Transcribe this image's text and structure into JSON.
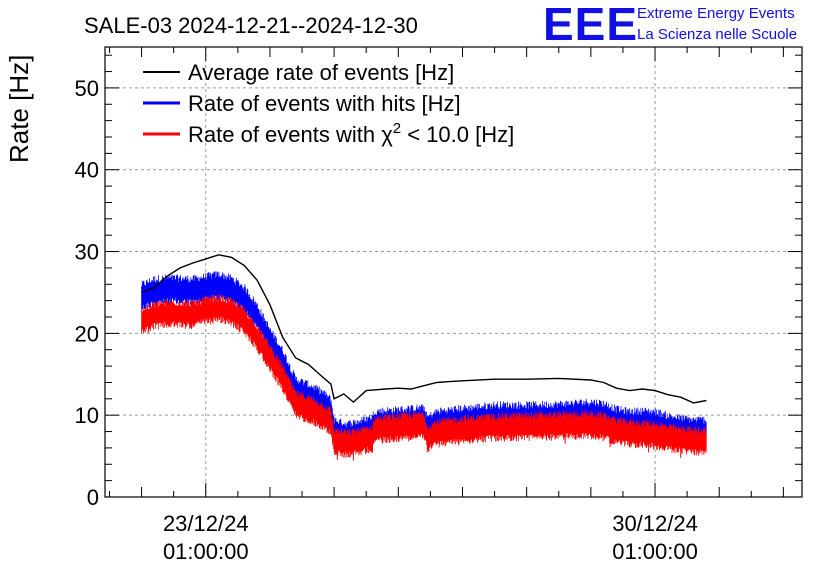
{
  "colors": {
    "average": "#000000",
    "hits": "#0000ff",
    "chi2": "#ff0000",
    "logo": "#1010e0"
  },
  "logo": {
    "mark": "EEE",
    "line1": "Extreme Energy Events",
    "line2": "La Scienza nelle Scuole"
  },
  "chart_data": {
    "type": "line",
    "title": "SALE-03 2024-12-21--2024-12-30",
    "ylabel": "Rate [Hz]",
    "xlabel": "",
    "ylim": [
      0,
      55
    ],
    "xlim": [
      -1.57,
      9.29
    ],
    "x_unit": "days since 23/12/24 01:00:00",
    "grid": true,
    "legend_position": "top-left",
    "yticks": [
      "0",
      "10",
      "20",
      "30",
      "40",
      "50"
    ],
    "yticks_values": [
      0,
      10,
      20,
      30,
      40,
      50
    ],
    "xticks": [
      {
        "date": "23/12/24",
        "time": "01:00:00",
        "x": 0
      },
      {
        "date": "30/12/24",
        "time": "01:00:00",
        "x": 7
      }
    ],
    "series": [
      {
        "name": "Average rate of events [Hz]",
        "color_key": "average",
        "style": "line",
        "x": [
          -1.0,
          -0.8,
          -0.6,
          -0.4,
          -0.2,
          0.0,
          0.2,
          0.4,
          0.6,
          0.8,
          1.0,
          1.2,
          1.4,
          1.6,
          1.8,
          1.95,
          2.0,
          2.15,
          2.3,
          2.5,
          2.8,
          3.0,
          3.2,
          3.4,
          3.6,
          3.8,
          4.0,
          4.5,
          5.0,
          5.5,
          6.0,
          6.2,
          6.4,
          6.6,
          6.8,
          7.0,
          7.2,
          7.4,
          7.6,
          7.8
        ],
        "y": [
          25.0,
          25.6,
          27.0,
          28.0,
          28.6,
          29.1,
          29.6,
          29.3,
          28.3,
          26.5,
          23.5,
          19.5,
          17.0,
          16.2,
          14.8,
          13.8,
          12.0,
          12.6,
          11.6,
          13.0,
          13.2,
          13.3,
          13.2,
          13.6,
          14.0,
          14.1,
          14.2,
          14.4,
          14.4,
          14.5,
          14.3,
          14.0,
          13.3,
          13.0,
          13.2,
          13.0,
          12.5,
          12.2,
          11.5,
          11.8
        ]
      },
      {
        "name": "Rate of events with hits [Hz]",
        "color_key": "hits",
        "style": "band",
        "x": [
          -1.0,
          -0.8,
          -0.6,
          -0.4,
          -0.2,
          0.0,
          0.2,
          0.4,
          0.6,
          0.8,
          1.0,
          1.2,
          1.4,
          1.6,
          1.8,
          1.95,
          2.0,
          2.2,
          2.4,
          2.6,
          2.62,
          3.4,
          3.45,
          3.6,
          3.8,
          4.0,
          4.5,
          5.0,
          5.5,
          6.0,
          6.2,
          6.4,
          6.6,
          6.8,
          7.0,
          7.2,
          7.4,
          7.6,
          7.8
        ],
        "y": [
          24.5,
          25.2,
          25.3,
          25.3,
          25.2,
          25.5,
          25.8,
          25.3,
          24.2,
          22.0,
          19.0,
          16.5,
          13.0,
          12.3,
          11.5,
          10.5,
          8.0,
          7.5,
          7.8,
          8.4,
          9.0,
          9.5,
          8.3,
          9.0,
          9.2,
          9.4,
          9.8,
          9.8,
          9.9,
          10.2,
          10.0,
          9.3,
          9.0,
          9.1,
          9.0,
          8.5,
          8.2,
          8.0,
          8.0
        ]
      },
      {
        "name": "Rate of events with χ² < 10.0 [Hz]",
        "color_key": "chi2",
        "style": "band",
        "x": [
          -1.0,
          -0.8,
          -0.6,
          -0.4,
          -0.2,
          0.0,
          0.2,
          0.4,
          0.6,
          0.8,
          1.0,
          1.2,
          1.4,
          1.6,
          1.8,
          1.95,
          2.0,
          2.2,
          2.4,
          2.6,
          2.62,
          3.4,
          3.45,
          3.6,
          3.8,
          4.0,
          4.5,
          5.0,
          5.5,
          6.0,
          6.2,
          6.4,
          6.6,
          6.8,
          7.0,
          7.2,
          7.4,
          7.6,
          7.8
        ],
        "y": [
          21.5,
          22.2,
          22.4,
          22.4,
          22.3,
          22.8,
          23.0,
          22.6,
          21.5,
          19.5,
          17.0,
          14.5,
          11.3,
          10.8,
          10.0,
          9.2,
          6.8,
          6.5,
          6.8,
          7.2,
          8.2,
          8.8,
          7.2,
          7.8,
          8.0,
          8.2,
          8.5,
          8.6,
          8.7,
          8.8,
          8.6,
          8.0,
          7.8,
          7.7,
          7.6,
          7.2,
          7.0,
          6.8,
          6.9
        ]
      }
    ],
    "legend": [
      {
        "text": "Average rate of events [Hz]",
        "color_key": "average"
      },
      {
        "text": "Rate of events with hits [Hz]",
        "color_key": "hits"
      },
      {
        "text_main": "Rate of events with χ",
        "text_sup": "2",
        "text_tail": " < 10.0 [Hz]",
        "color_key": "chi2"
      }
    ]
  }
}
